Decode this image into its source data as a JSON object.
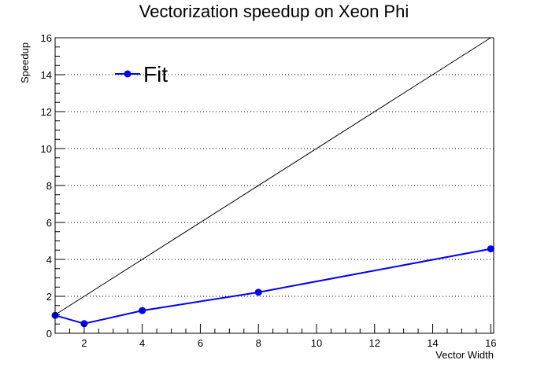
{
  "chart_data": {
    "type": "line",
    "title": "Vectorization speedup on Xeon Phi",
    "xlabel": "Vector Width",
    "ylabel": "Speedup",
    "xlim": [
      1,
      16.1
    ],
    "ylim": [
      0,
      16
    ],
    "grid": {
      "x": false,
      "y": true
    },
    "legend_position": "top-left",
    "x_ticks": [
      2,
      4,
      6,
      8,
      10,
      12,
      14,
      16
    ],
    "y_ticks": [
      0,
      2,
      4,
      6,
      8,
      10,
      12,
      14,
      16
    ],
    "series": [
      {
        "name": "Fit",
        "color": "#0000ff",
        "x": [
          1,
          2,
          4,
          8,
          16
        ],
        "y": [
          0.97,
          0.52,
          1.23,
          2.22,
          4.57
        ]
      }
    ],
    "reference_line": {
      "color": "#000000",
      "x": [
        1,
        16
      ],
      "y": [
        1,
        16
      ]
    }
  }
}
